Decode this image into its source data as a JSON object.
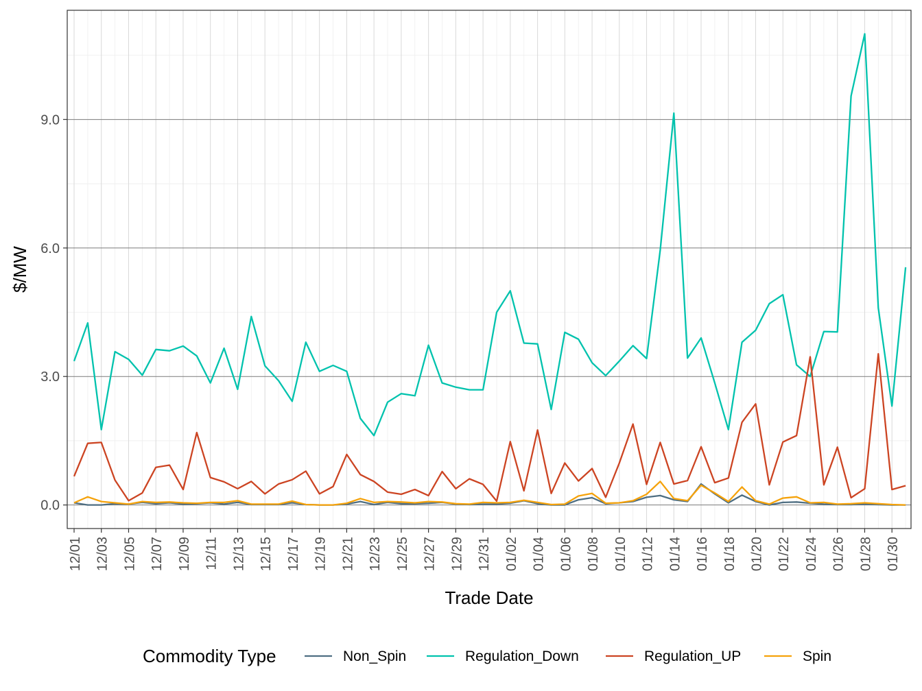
{
  "chart_data": {
    "type": "line",
    "title": "",
    "xlabel": "Trade Date",
    "ylabel": "$/MW",
    "ylim": [
      -0.55,
      11.55
    ],
    "y_ticks": [
      0.0,
      3.0,
      6.0,
      9.0
    ],
    "y_tick_labels": [
      "0.0",
      "3.0",
      "6.0",
      "9.0"
    ],
    "grid": true,
    "legend_title": "Commodity Type",
    "legend_position": "bottom",
    "x_tick_labels": [
      "12/01",
      "12/03",
      "12/05",
      "12/07",
      "12/09",
      "12/11",
      "12/13",
      "12/15",
      "12/17",
      "12/19",
      "12/21",
      "12/23",
      "12/25",
      "12/27",
      "12/29",
      "12/31",
      "01/02",
      "01/04",
      "01/06",
      "01/08",
      "01/10",
      "01/12",
      "01/14",
      "01/16",
      "01/18",
      "01/20",
      "01/22",
      "01/24",
      "01/26",
      "01/28",
      "01/30"
    ],
    "x": [
      "12/01",
      "12/02",
      "12/03",
      "12/04",
      "12/05",
      "12/06",
      "12/07",
      "12/08",
      "12/09",
      "12/10",
      "12/11",
      "12/12",
      "12/13",
      "12/14",
      "12/15",
      "12/16",
      "12/17",
      "12/18",
      "12/19",
      "12/20",
      "12/21",
      "12/22",
      "12/23",
      "12/24",
      "12/25",
      "12/26",
      "12/27",
      "12/28",
      "12/29",
      "12/30",
      "12/31",
      "01/01",
      "01/02",
      "01/03",
      "01/04",
      "01/05",
      "01/06",
      "01/07",
      "01/08",
      "01/09",
      "01/10",
      "01/11",
      "01/12",
      "01/13",
      "01/14",
      "01/15",
      "01/16",
      "01/17",
      "01/18",
      "01/19",
      "01/20",
      "01/21",
      "01/22",
      "01/23",
      "01/24",
      "01/25",
      "01/26",
      "01/27",
      "01/28",
      "01/29",
      "01/30",
      "01/31"
    ],
    "series": [
      {
        "name": "Non_Spin",
        "color": "#4e6e82",
        "values": [
          0.05,
          0.0,
          0.0,
          0.03,
          0.02,
          0.06,
          0.03,
          0.05,
          0.02,
          0.03,
          0.05,
          0.02,
          0.06,
          0.01,
          0.01,
          0.01,
          0.05,
          0.01,
          0.0,
          0.0,
          0.02,
          0.08,
          0.01,
          0.06,
          0.03,
          0.03,
          0.04,
          0.06,
          0.02,
          0.01,
          0.02,
          0.02,
          0.04,
          0.1,
          0.03,
          0.0,
          0.0,
          0.12,
          0.17,
          0.03,
          0.05,
          0.08,
          0.18,
          0.22,
          0.12,
          0.08,
          0.49,
          0.26,
          0.05,
          0.23,
          0.08,
          0.0,
          0.06,
          0.07,
          0.04,
          0.02,
          0.01,
          0.01,
          0.02,
          0.01,
          0.0,
          0.0
        ]
      },
      {
        "name": "Regulation_Down",
        "color": "#00c2ad",
        "values": [
          3.36,
          4.25,
          1.76,
          3.58,
          3.4,
          3.03,
          3.63,
          3.6,
          3.71,
          3.48,
          2.85,
          3.66,
          2.7,
          4.4,
          3.25,
          2.9,
          2.42,
          3.8,
          3.12,
          3.26,
          3.12,
          2.02,
          1.62,
          2.4,
          2.6,
          2.55,
          3.73,
          2.85,
          2.75,
          2.69,
          2.69,
          4.5,
          5.0,
          3.78,
          3.76,
          2.23,
          4.03,
          3.87,
          3.32,
          3.02,
          3.36,
          3.72,
          3.42,
          5.95,
          9.15,
          3.43,
          3.9,
          2.85,
          1.76,
          3.8,
          4.08,
          4.7,
          4.91,
          3.27,
          3.0,
          4.05,
          4.04,
          9.55,
          11.0,
          4.6,
          2.31,
          5.55
        ]
      },
      {
        "name": "Regulation_UP",
        "color": "#cc4422",
        "values": [
          0.67,
          1.44,
          1.46,
          0.58,
          0.1,
          0.28,
          0.88,
          0.93,
          0.36,
          1.69,
          0.64,
          0.54,
          0.38,
          0.55,
          0.26,
          0.49,
          0.59,
          0.79,
          0.26,
          0.43,
          1.18,
          0.71,
          0.55,
          0.3,
          0.25,
          0.36,
          0.22,
          0.78,
          0.38,
          0.61,
          0.48,
          0.09,
          1.48,
          0.33,
          1.75,
          0.27,
          0.98,
          0.56,
          0.85,
          0.18,
          0.98,
          1.89,
          0.48,
          1.46,
          0.49,
          0.57,
          1.36,
          0.52,
          0.63,
          1.93,
          2.36,
          0.47,
          1.47,
          1.62,
          3.46,
          0.47,
          1.35,
          0.17,
          0.38,
          3.53,
          0.36,
          0.45
        ]
      },
      {
        "name": "Spin",
        "color": "#f5a20a",
        "values": [
          0.05,
          0.19,
          0.08,
          0.05,
          0.02,
          0.08,
          0.06,
          0.07,
          0.05,
          0.04,
          0.06,
          0.06,
          0.1,
          0.02,
          0.02,
          0.02,
          0.09,
          0.01,
          0.0,
          0.0,
          0.04,
          0.15,
          0.06,
          0.08,
          0.07,
          0.05,
          0.08,
          0.07,
          0.03,
          0.02,
          0.06,
          0.05,
          0.06,
          0.11,
          0.06,
          0.01,
          0.02,
          0.21,
          0.27,
          0.04,
          0.05,
          0.1,
          0.25,
          0.55,
          0.15,
          0.1,
          0.46,
          0.28,
          0.08,
          0.42,
          0.1,
          0.02,
          0.16,
          0.19,
          0.05,
          0.06,
          0.02,
          0.03,
          0.05,
          0.03,
          0.01,
          0.0
        ]
      }
    ]
  }
}
